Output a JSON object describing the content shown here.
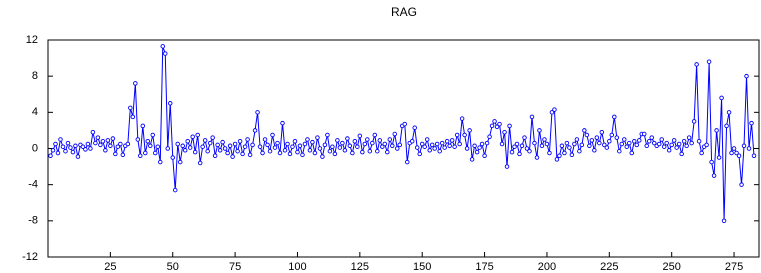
{
  "chart_data": {
    "type": "line",
    "title": "RAG",
    "x": [
      1,
      2,
      3,
      4,
      5,
      6,
      7,
      8,
      9,
      10,
      11,
      12,
      13,
      14,
      15,
      16,
      17,
      18,
      19,
      20,
      21,
      22,
      23,
      24,
      25,
      26,
      27,
      28,
      29,
      30,
      31,
      32,
      33,
      34,
      35,
      36,
      37,
      38,
      39,
      40,
      41,
      42,
      43,
      44,
      45,
      46,
      47,
      48,
      49,
      50,
      51,
      52,
      53,
      54,
      55,
      56,
      57,
      58,
      59,
      60,
      61,
      62,
      63,
      64,
      65,
      66,
      67,
      68,
      69,
      70,
      71,
      72,
      73,
      74,
      75,
      76,
      77,
      78,
      79,
      80,
      81,
      82,
      83,
      84,
      85,
      86,
      87,
      88,
      89,
      90,
      91,
      92,
      93,
      94,
      95,
      96,
      97,
      98,
      99,
      100,
      101,
      102,
      103,
      104,
      105,
      106,
      107,
      108,
      109,
      110,
      111,
      112,
      113,
      114,
      115,
      116,
      117,
      118,
      119,
      120,
      121,
      122,
      123,
      124,
      125,
      126,
      127,
      128,
      129,
      130,
      131,
      132,
      133,
      134,
      135,
      136,
      137,
      138,
      139,
      140,
      141,
      142,
      143,
      144,
      145,
      146,
      147,
      148,
      149,
      150,
      151,
      152,
      153,
      154,
      155,
      156,
      157,
      158,
      159,
      160,
      161,
      162,
      163,
      164,
      165,
      166,
      167,
      168,
      169,
      170,
      171,
      172,
      173,
      174,
      175,
      176,
      177,
      178,
      179,
      180,
      181,
      182,
      183,
      184,
      185,
      186,
      187,
      188,
      189,
      190,
      191,
      192,
      193,
      194,
      195,
      196,
      197,
      198,
      199,
      200,
      201,
      202,
      203,
      204,
      205,
      206,
      207,
      208,
      209,
      210,
      211,
      212,
      213,
      214,
      215,
      216,
      217,
      218,
      219,
      220,
      221,
      222,
      223,
      224,
      225,
      226,
      227,
      228,
      229,
      230,
      231,
      232,
      233,
      234,
      235,
      236,
      237,
      238,
      239,
      240,
      241,
      242,
      243,
      244,
      245,
      246,
      247,
      248,
      249,
      250,
      251,
      252,
      253,
      254,
      255,
      256,
      257,
      258,
      259,
      260,
      261,
      262,
      263,
      264,
      265,
      266,
      267,
      268,
      269,
      270,
      271,
      272,
      273,
      274,
      275,
      276,
      277,
      278,
      279,
      280,
      281,
      282,
      283
    ],
    "series": [
      {
        "color": "#0000ff",
        "values": [
          -0.8,
          -0.2,
          0.5,
          -0.5,
          1.0,
          0.2,
          -0.3,
          0.6,
          0.1,
          -0.4,
          0.3,
          -0.9,
          0.4,
          0.2,
          -0.1,
          0.5,
          0.0,
          1.8,
          0.6,
          1.2,
          0.4,
          0.8,
          -0.2,
          0.9,
          0.3,
          1.1,
          -0.6,
          0.2,
          0.5,
          -0.7,
          0.3,
          0.5,
          4.5,
          3.5,
          7.2,
          1.0,
          -0.8,
          2.5,
          -0.5,
          0.8,
          0.3,
          1.5,
          -0.5,
          0.2,
          -1.5,
          11.3,
          10.5,
          0.0,
          5.0,
          -1.0,
          -4.6,
          0.5,
          -1.5,
          0.3,
          -0.2,
          0.8,
          0.1,
          1.3,
          -0.4,
          1.5,
          -1.6,
          0.2,
          0.9,
          -0.3,
          0.6,
          1.2,
          -0.8,
          0.4,
          -0.2,
          0.7,
          0.0,
          -0.5,
          0.3,
          -0.9,
          0.5,
          -0.3,
          0.8,
          -0.6,
          0.2,
          1.0,
          -0.7,
          0.4,
          2.0,
          4.0,
          0.2,
          -0.5,
          1.0,
          0.4,
          -0.3,
          1.5,
          0.1,
          0.6,
          -0.5,
          2.8,
          -0.2,
          0.5,
          -0.6,
          0.2,
          0.8,
          -0.4,
          0.3,
          -0.7,
          0.5,
          1.0,
          -0.2,
          0.7,
          -0.5,
          1.2,
          0.0,
          -0.9,
          0.4,
          1.5,
          -0.3,
          0.2,
          -0.6,
          0.9,
          0.1,
          0.6,
          -0.2,
          1.1,
          0.3,
          -0.5,
          0.8,
          0.2,
          1.4,
          -0.4,
          0.5,
          1.0,
          -0.3,
          0.6,
          1.5,
          -0.3,
          0.9,
          0.2,
          0.5,
          -0.4,
          1.0,
          0.3,
          1.6,
          0.0,
          0.4,
          2.5,
          2.7,
          -1.5,
          0.6,
          0.8,
          2.3,
          0.1,
          -0.6,
          0.5,
          0.2,
          1.0,
          -0.2,
          0.4,
          0.0,
          0.5,
          -0.3,
          0.6,
          0.1,
          0.8,
          0.3,
          0.9,
          0.2,
          1.5,
          0.5,
          3.3,
          1.5,
          0.0,
          2.0,
          -1.2,
          0.3,
          -0.4,
          0.1,
          0.5,
          -0.8,
          0.6,
          1.3,
          2.5,
          3.0,
          2.4,
          2.7,
          0.5,
          1.8,
          -2.0,
          2.5,
          -0.4,
          0.2,
          0.5,
          -0.6,
          0.3,
          1.2,
          0.0,
          -0.3,
          3.5,
          0.6,
          -1.0,
          2.0,
          0.3,
          1.0,
          0.5,
          -0.5,
          4.0,
          4.3,
          -1.2,
          -0.8,
          0.3,
          -0.5,
          0.6,
          0.1,
          -0.7,
          0.5,
          1.0,
          -0.3,
          0.4,
          2.0,
          1.5,
          0.3,
          0.9,
          -0.2,
          1.2,
          0.6,
          1.8,
          0.4,
          0.1,
          0.8,
          1.5,
          3.5,
          1.2,
          -0.3,
          0.5,
          1.0,
          0.2,
          0.6,
          -0.5,
          0.8,
          0.4,
          0.9,
          1.6,
          1.6,
          0.3,
          0.8,
          1.2,
          0.6,
          0.3,
          0.5,
          1.0,
          0.2,
          0.6,
          -0.2,
          0.4,
          0.9,
          0.1,
          0.5,
          -0.6,
          0.8,
          0.3,
          1.2,
          0.6,
          3.0,
          9.3,
          0.8,
          -0.5,
          0.2,
          0.4,
          9.6,
          -1.5,
          -3.0,
          2.0,
          -1.0,
          5.6,
          -8.0,
          2.5,
          4.0,
          -0.5,
          0.0,
          -0.5,
          -0.8,
          -4.0,
          0.3,
          8.0,
          0.0,
          2.8,
          -0.8
        ]
      }
    ],
    "xlim": [
      0,
      285
    ],
    "xticks": [
      25,
      50,
      75,
      100,
      125,
      150,
      175,
      200,
      225,
      250,
      275
    ],
    "ylim": [
      -12,
      12
    ],
    "yticks": [
      -12,
      -8,
      -4,
      0,
      4,
      8,
      12
    ],
    "grid": false,
    "markers": true
  }
}
